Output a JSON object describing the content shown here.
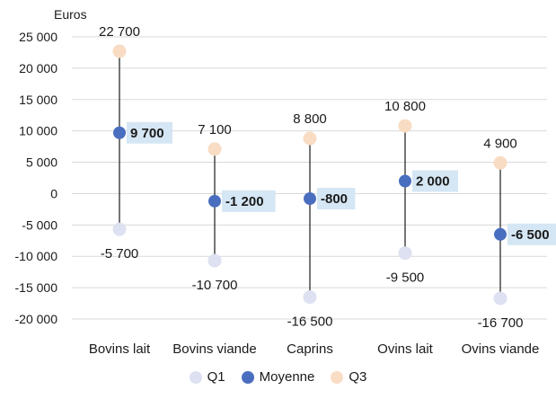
{
  "chart_data": {
    "type": "scatter",
    "ylabel": "Euros",
    "ylim": [
      -20000,
      25000
    ],
    "ytick_step": 5000,
    "ytick_labels": [
      "25 000",
      "20 000",
      "15 000",
      "10 000",
      "5 000",
      "0",
      "-5 000",
      "-10 000",
      "-15 000",
      "-20 000"
    ],
    "grid": true,
    "legend_position": "bottom",
    "categories": [
      "Bovins lait",
      "Bovins viande",
      "Caprins",
      "Ovins lait",
      "Ovins viande"
    ],
    "series": [
      {
        "name": "Q1",
        "color": "#dde1f1",
        "values": [
          -5700,
          -10700,
          -16500,
          -9500,
          -16700
        ],
        "labels": [
          "-5 700",
          "-10 700",
          "-16 500",
          "-9 500",
          "-16 700"
        ]
      },
      {
        "name": "Moyenne",
        "color": "#4a6ebf",
        "values": [
          9700,
          -1200,
          -800,
          2000,
          -6500
        ],
        "labels": [
          "9 700",
          "-1 200",
          "-800",
          "2 000",
          "-6 500"
        ]
      },
      {
        "name": "Q3",
        "color": "#f8dcc3",
        "values": [
          22700,
          7100,
          8800,
          10800,
          4900
        ],
        "labels": [
          "22 700",
          "7 100",
          "8 800",
          "10 800",
          "4 900"
        ]
      }
    ],
    "label_box_color": "#d5e6f4"
  }
}
